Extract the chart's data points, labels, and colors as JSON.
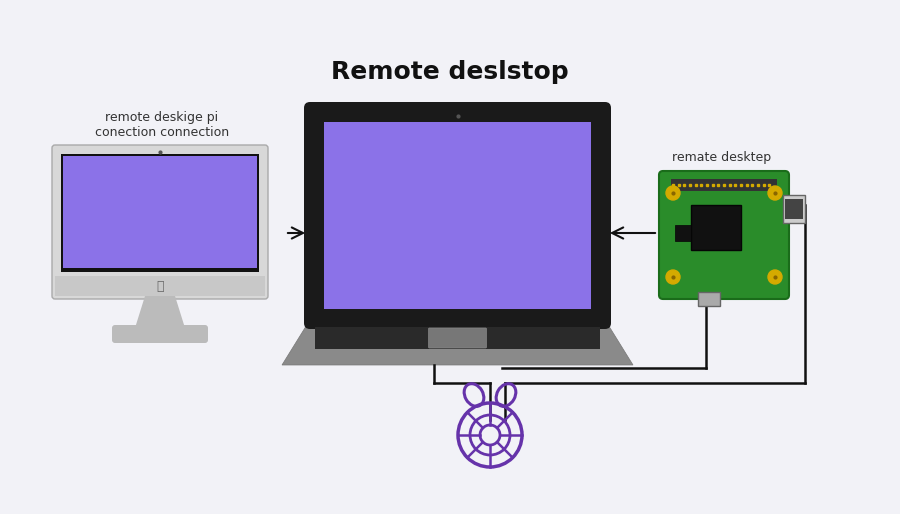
{
  "bg_color": "#f2f2f7",
  "title": "Remote deslstop",
  "title_fontsize": 18,
  "title_fontweight": "bold",
  "label_left": "remote deskige pi\nconection connection",
  "label_right": "remate desktep",
  "screen_color": "#8B72E8",
  "imac_bezel_color": "#d8d8d8",
  "imac_edge_color": "#aaaaaa",
  "imac_chin_color": "#c8c8c8",
  "imac_stand_color": "#bbbbbb",
  "laptop_bezel_color": "#1a1a1a",
  "laptop_base_color": "#8a8a8a",
  "laptop_kbd_color": "#2a2a2a",
  "rpi_green": "#2a8c2a",
  "rpi_green_edge": "#1a6c1a",
  "rpi_gpio_color": "#333333",
  "rpi_cpu_color": "#111111",
  "rpi_gold": "#d4aa00",
  "rpi_port_color": "#aaaaaa",
  "cable_color": "#111111",
  "arrow_color": "#111111",
  "rpi_logo_color": "#6633aa"
}
